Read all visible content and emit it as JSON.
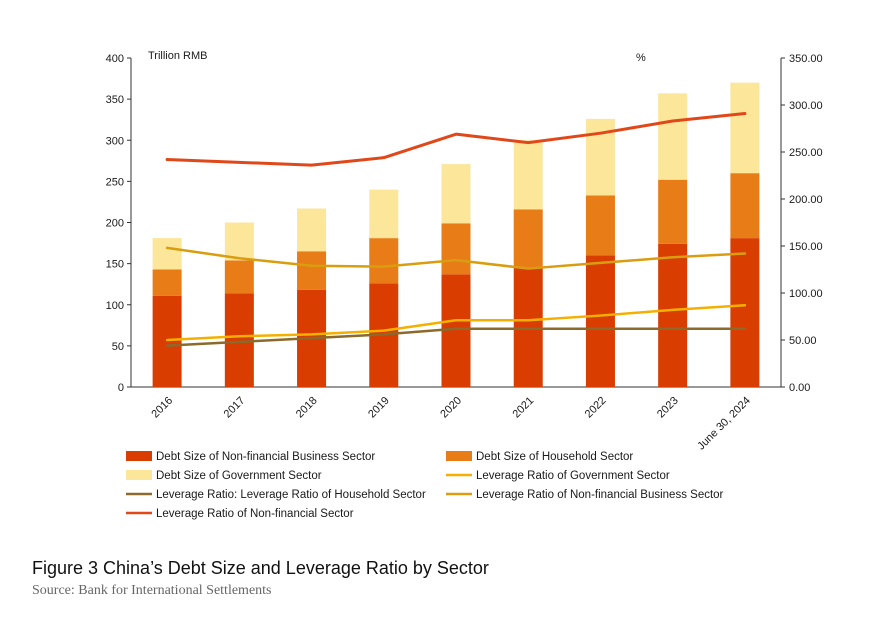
{
  "chart_data": {
    "type": "bar",
    "left_axis_unit": "Trillion RMB",
    "right_axis_unit": "%",
    "categories": [
      "2016",
      "2017",
      "2018",
      "2019",
      "2020",
      "2021",
      "2022",
      "2023",
      "June 30, 2024"
    ],
    "left_ticks": [
      "0",
      "50",
      "100",
      "150",
      "200",
      "250",
      "300",
      "350",
      "400"
    ],
    "right_ticks": [
      "0.00",
      "50.00",
      "100.00",
      "150.00",
      "200.00",
      "250.00",
      "300.00",
      "350.00"
    ],
    "ylim_left": [
      0,
      400
    ],
    "ylim_right": [
      0,
      350
    ],
    "stacked_series": [
      {
        "key": "nfb",
        "name": "Debt Size of Non-financial Business Sector",
        "color": "#d93d00",
        "values": [
          111,
          114,
          118,
          126,
          137,
          145,
          160,
          174,
          181
        ]
      },
      {
        "key": "hh",
        "name": "Debt Size of Household Sector",
        "color": "#e87c16",
        "values": [
          32,
          40,
          47,
          55,
          62,
          71,
          73,
          78,
          79
        ]
      },
      {
        "key": "gov",
        "name": "Debt Size of Government Sector",
        "color": "#fbe69a",
        "values": [
          38,
          46,
          52,
          59,
          72,
          84,
          93,
          105,
          110
        ]
      }
    ],
    "line_series": [
      {
        "key": "lev_gov",
        "name": "Leverage Ratio of Government Sector",
        "color": "#f3b000",
        "values": [
          50,
          54,
          56,
          60,
          71,
          71,
          76,
          82,
          87
        ]
      },
      {
        "key": "lev_hh",
        "name": "Leverage Ratio: Leverage Ratio of Household Sector",
        "color": "#8b6a2c",
        "values": [
          44,
          48,
          52,
          56,
          62,
          62,
          62,
          62,
          62
        ]
      },
      {
        "key": "lev_nfb",
        "name": "Leverage Ratio of Non-financial Business Sector",
        "color": "#d99e10",
        "values": [
          148,
          137,
          129,
          128,
          135,
          126,
          132,
          138,
          142
        ]
      },
      {
        "key": "lev_nf",
        "name": "Leverage Ratio of Non-financial Sector",
        "color": "#e0481a",
        "values": [
          242,
          239,
          236,
          244,
          269,
          260,
          270,
          283,
          291
        ]
      }
    ]
  },
  "caption": {
    "title": "Figure 3 China’s Debt Size and Leverage Ratio by Sector",
    "source": "Source: Bank for International Settlements"
  }
}
